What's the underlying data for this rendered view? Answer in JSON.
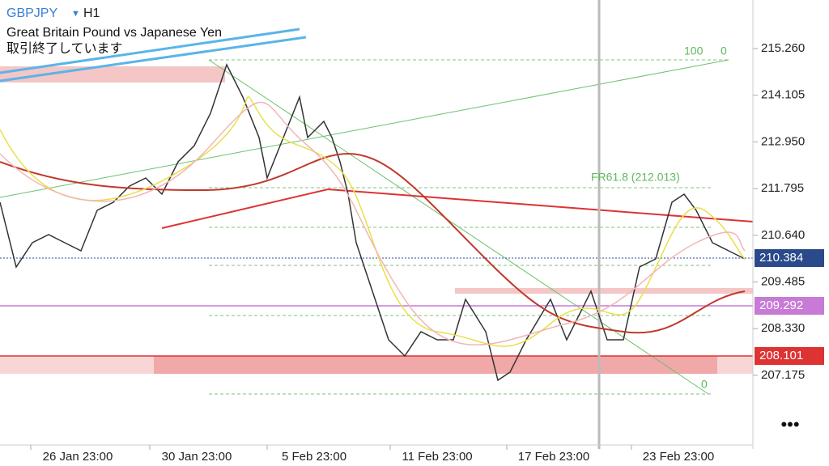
{
  "header": {
    "symbol": "GBPJPY",
    "timeframe": "H1",
    "description": "Great Britain Pound vs Japanese Yen",
    "status": "取引終了しています"
  },
  "price_axis": [
    "215.260",
    "214.105",
    "212.950",
    "211.795",
    "210.640",
    "209.485",
    "208.330",
    "207.175"
  ],
  "price_tags": [
    "210.384",
    "209.292",
    "208.101"
  ],
  "fib_labels": [
    "100",
    "0",
    "FR61.8 (212.013)",
    "0"
  ],
  "time_axis": [
    "26 Jan 23:00",
    "30 Jan 23:00",
    "5 Feb 23:00",
    "11 Feb 23:00",
    "17 Feb 23:00",
    "23 Feb 23:00"
  ]
}
